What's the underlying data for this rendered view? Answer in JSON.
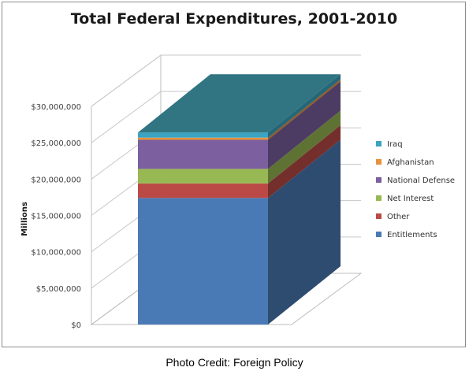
{
  "chart_data": {
    "type": "bar",
    "title": "Total Federal Expenditures, 2001-2010",
    "xlabel": "",
    "ylabel": "Millions",
    "ylim": [
      0,
      30000000
    ],
    "yticks": [
      0,
      5000000,
      10000000,
      15000000,
      20000000,
      25000000,
      30000000
    ],
    "ytick_labels": [
      "$0",
      "$5,000,000",
      "$10,000,000",
      "$15,000,000",
      "$20,000,000",
      "$25,000,000",
      "$30,000,000"
    ],
    "stacked": true,
    "three_d": true,
    "grid": true,
    "legend_position": "right",
    "categories": [
      ""
    ],
    "series": [
      {
        "name": "Entitlements",
        "values": [
          17400000
        ],
        "color": "#4a7ab5"
      },
      {
        "name": "Other",
        "values": [
          2000000
        ],
        "color": "#bb4a47"
      },
      {
        "name": "Net Interest",
        "values": [
          2000000
        ],
        "color": "#98b854"
      },
      {
        "name": "National Defense",
        "values": [
          4000000
        ],
        "color": "#7b5f9e"
      },
      {
        "name": "Afghanistan",
        "values": [
          300000
        ],
        "color": "#e8913d"
      },
      {
        "name": "Iraq",
        "values": [
          700000
        ],
        "color": "#3ba4c3"
      }
    ]
  },
  "caption": "Photo Credit: Foreign Policy"
}
